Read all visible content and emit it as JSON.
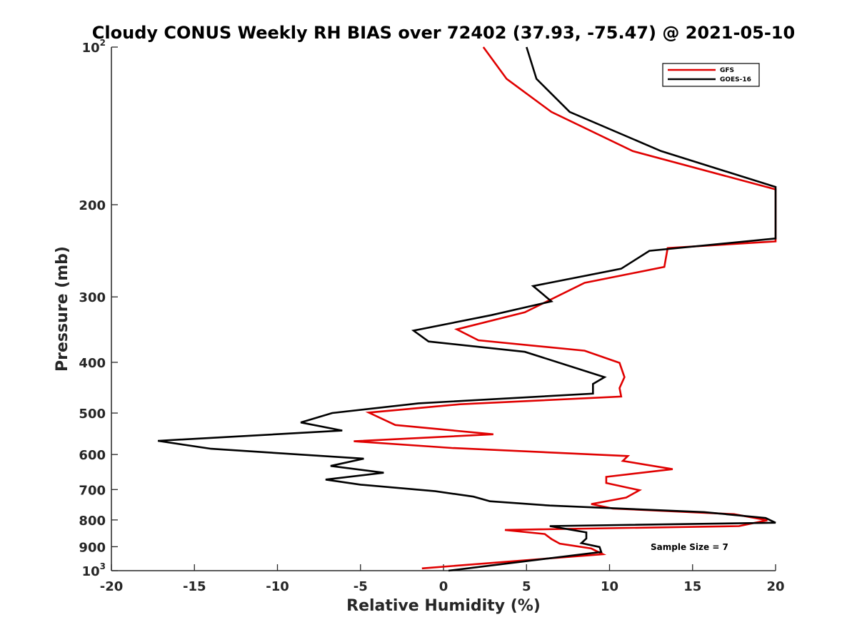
{
  "chart_data": {
    "type": "line",
    "title": "Cloudy CONUS Weekly RH BIAS over 72402 (37.93, -75.47) @ 2021-05-10",
    "xlabel": "Relative Humidity (%)",
    "ylabel": "Pressure (mb)",
    "xlim": [
      -20,
      20
    ],
    "ylim": [
      100,
      1000
    ],
    "y_scale": "log",
    "y_direction": "reversed",
    "x_ticks": [
      "-20",
      "-15",
      "-10",
      "-5",
      "0",
      "5",
      "10",
      "15",
      "20"
    ],
    "y_ticks": [
      {
        "value": 100,
        "base": "10",
        "exp": "2"
      },
      {
        "value": 200,
        "label": "200"
      },
      {
        "value": 300,
        "label": "300"
      },
      {
        "value": 400,
        "label": "400"
      },
      {
        "value": 500,
        "label": "500"
      },
      {
        "value": 600,
        "label": "600"
      },
      {
        "value": 700,
        "label": "700"
      },
      {
        "value": 800,
        "label": "800"
      },
      {
        "value": 900,
        "label": "900"
      },
      {
        "value": 1000,
        "base": "10",
        "exp": "3"
      }
    ],
    "grid": false,
    "legend_position": "top-right",
    "annotation": "Sample Size = 7",
    "series": [
      {
        "name": "GFS",
        "color": "#e00000",
        "points": [
          [
            2.4,
            100
          ],
          [
            3.8,
            115
          ],
          [
            6.5,
            133
          ],
          [
            11.4,
            158
          ],
          [
            20.0,
            187
          ],
          [
            20.0,
            235
          ],
          [
            13.5,
            242
          ],
          [
            13.3,
            263
          ],
          [
            8.5,
            282
          ],
          [
            4.9,
            321
          ],
          [
            0.8,
            346
          ],
          [
            2.1,
            363
          ],
          [
            8.5,
            380
          ],
          [
            10.6,
            401
          ],
          [
            10.9,
            427
          ],
          [
            10.6,
            448
          ],
          [
            10.7,
            465
          ],
          [
            1.0,
            481
          ],
          [
            -4.5,
            499
          ],
          [
            -2.9,
            527
          ],
          [
            3.0,
            549
          ],
          [
            -5.4,
            566
          ],
          [
            0.5,
            583
          ],
          [
            11.1,
            604
          ],
          [
            10.8,
            617
          ],
          [
            13.8,
            640
          ],
          [
            9.8,
            662
          ],
          [
            9.8,
            680
          ],
          [
            11.8,
            702
          ],
          [
            11.0,
            725
          ],
          [
            8.9,
            746
          ],
          [
            10.2,
            761
          ],
          [
            17.5,
            780
          ],
          [
            19.5,
            801
          ],
          [
            17.8,
            822
          ],
          [
            3.7,
            836
          ],
          [
            6.1,
            851
          ],
          [
            6.5,
            870
          ],
          [
            7.0,
            888
          ],
          [
            8.9,
            907
          ],
          [
            9.6,
            930
          ],
          [
            -1.3,
            990
          ]
        ]
      },
      {
        "name": "GOES-16",
        "color": "#000000",
        "points": [
          [
            5.0,
            100
          ],
          [
            5.6,
            115
          ],
          [
            7.6,
            133
          ],
          [
            13.1,
            158
          ],
          [
            20.0,
            185
          ],
          [
            20.0,
            232
          ],
          [
            12.4,
            245
          ],
          [
            10.7,
            265
          ],
          [
            5.4,
            286
          ],
          [
            6.5,
            306
          ],
          [
            2.9,
            325
          ],
          [
            -1.8,
            348
          ],
          [
            -0.9,
            365
          ],
          [
            4.9,
            382
          ],
          [
            9.7,
            427
          ],
          [
            9.0,
            440
          ],
          [
            9.0,
            459
          ],
          [
            -1.5,
            479
          ],
          [
            -6.7,
            500
          ],
          [
            -8.6,
            521
          ],
          [
            -6.1,
            540
          ],
          [
            -17.2,
            565
          ],
          [
            -14.0,
            585
          ],
          [
            -4.8,
            611
          ],
          [
            -6.8,
            631
          ],
          [
            -3.6,
            650
          ],
          [
            -7.1,
            670
          ],
          [
            -5.0,
            685
          ],
          [
            -0.5,
            705
          ],
          [
            1.8,
            722
          ],
          [
            2.8,
            737
          ],
          [
            6.4,
            751
          ],
          [
            15.7,
            773
          ],
          [
            19.4,
            793
          ],
          [
            20.0,
            810
          ],
          [
            6.4,
            822
          ],
          [
            8.6,
            845
          ],
          [
            8.6,
            868
          ],
          [
            8.3,
            886
          ],
          [
            9.4,
            901
          ],
          [
            9.5,
            921
          ],
          [
            0.3,
            1000
          ]
        ]
      }
    ]
  }
}
